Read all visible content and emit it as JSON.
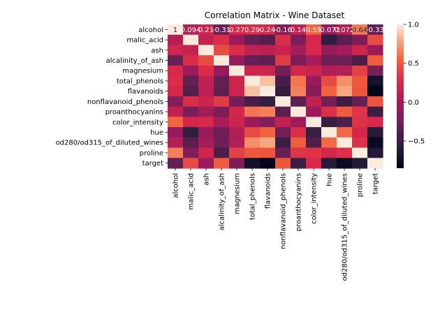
{
  "chart_data": {
    "type": "heatmap",
    "title": "Correlation Matrix - Wine Dataset",
    "labels": [
      "alcohol",
      "malic_acid",
      "ash",
      "alcalinity_of_ash",
      "magnesium",
      "total_phenols",
      "flavanoids",
      "nonflavanoid_phenols",
      "proanthocyanins",
      "color_intensity",
      "hue",
      "od280/od315_of_diluted_wines",
      "proline",
      "target"
    ],
    "colorbar": {
      "min": -0.85,
      "max": 1.0,
      "ticks": [
        1.0,
        0.5,
        0.0,
        -0.5
      ],
      "tick_labels": [
        "1.0",
        "0.5",
        "0.0",
        "−0.5"
      ]
    },
    "annotations_row0": [
      "1",
      "0.094",
      "0.21",
      "-0.31",
      "0.27",
      "0.29",
      "0.24",
      "-0.16",
      "0.14",
      "0.55",
      "-0.072",
      "0.072",
      "0.64",
      "-0.33"
    ],
    "matrix": [
      [
        1.0,
        0.09,
        0.21,
        -0.31,
        0.27,
        0.29,
        0.24,
        -0.16,
        0.14,
        0.55,
        -0.07,
        0.07,
        0.64,
        -0.33
      ],
      [
        0.09,
        1.0,
        0.16,
        0.29,
        -0.05,
        -0.34,
        -0.41,
        0.29,
        -0.22,
        0.25,
        -0.56,
        -0.37,
        -0.19,
        0.44
      ],
      [
        0.21,
        0.16,
        1.0,
        0.44,
        0.29,
        0.13,
        0.12,
        0.19,
        0.01,
        0.26,
        -0.07,
        0.0,
        0.22,
        -0.05
      ],
      [
        -0.31,
        0.29,
        0.44,
        1.0,
        -0.08,
        -0.32,
        -0.35,
        0.36,
        -0.2,
        0.02,
        -0.27,
        -0.28,
        -0.44,
        0.52
      ],
      [
        0.27,
        -0.05,
        0.29,
        -0.08,
        1.0,
        0.21,
        0.2,
        -0.26,
        0.24,
        0.2,
        0.06,
        0.07,
        0.39,
        -0.21
      ],
      [
        0.29,
        -0.34,
        0.13,
        -0.32,
        0.21,
        1.0,
        0.86,
        -0.45,
        0.61,
        -0.06,
        0.43,
        0.7,
        0.5,
        -0.72
      ],
      [
        0.24,
        -0.41,
        0.12,
        -0.35,
        0.2,
        0.86,
        1.0,
        -0.54,
        0.65,
        -0.17,
        0.54,
        0.79,
        0.49,
        -0.85
      ],
      [
        -0.16,
        0.29,
        0.19,
        0.36,
        -0.26,
        -0.45,
        -0.54,
        1.0,
        -0.37,
        0.14,
        -0.26,
        -0.5,
        -0.31,
        0.49
      ],
      [
        0.14,
        -0.22,
        0.01,
        -0.2,
        0.24,
        0.61,
        0.65,
        -0.37,
        1.0,
        -0.03,
        0.3,
        0.52,
        0.33,
        -0.5
      ],
      [
        0.55,
        0.25,
        0.26,
        0.02,
        0.2,
        -0.06,
        -0.17,
        0.14,
        -0.03,
        1.0,
        -0.52,
        -0.43,
        0.32,
        0.27
      ],
      [
        -0.07,
        -0.56,
        -0.07,
        -0.27,
        0.06,
        0.43,
        0.54,
        -0.26,
        0.3,
        -0.52,
        1.0,
        0.57,
        0.24,
        -0.62
      ],
      [
        0.07,
        -0.37,
        0.0,
        -0.28,
        0.07,
        0.7,
        0.79,
        -0.5,
        0.52,
        -0.43,
        0.57,
        1.0,
        0.31,
        -0.79
      ],
      [
        0.64,
        -0.19,
        0.22,
        -0.44,
        0.39,
        0.5,
        0.49,
        -0.31,
        0.33,
        0.32,
        0.24,
        0.31,
        1.0,
        -0.63
      ],
      [
        -0.33,
        0.44,
        -0.05,
        0.52,
        -0.21,
        -0.72,
        -0.85,
        0.49,
        -0.5,
        0.27,
        -0.62,
        -0.79,
        -0.63,
        1.0
      ]
    ]
  }
}
